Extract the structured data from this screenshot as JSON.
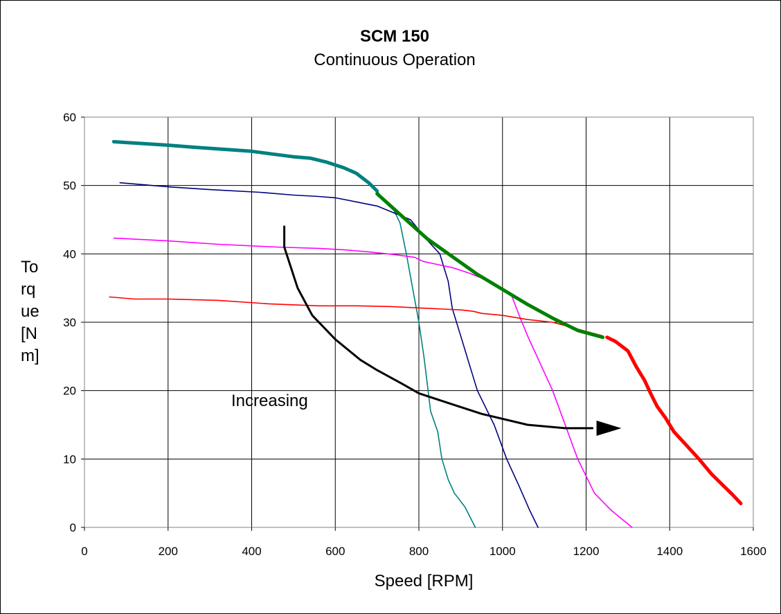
{
  "chart_data": {
    "type": "line",
    "title": "SCM 150",
    "subtitle": "Continuous Operation",
    "xlabel": "Speed [RPM]",
    "ylabel_lines": [
      "To",
      "rq",
      "ue",
      "[N",
      "m]"
    ],
    "xlim": [
      0,
      1600
    ],
    "ylim": [
      0,
      60
    ],
    "xticks": [
      "0",
      "200",
      "400",
      "600",
      "800",
      "1000",
      "1200",
      "1400",
      "1600"
    ],
    "yticks": [
      "0",
      "10",
      "20",
      "30",
      "40",
      "50",
      "60"
    ],
    "grid": true,
    "annotation": "Increasing",
    "series": [
      {
        "color": "#008080",
        "width": 5,
        "points": [
          [
            70,
            56.4
          ],
          [
            200,
            55.9
          ],
          [
            260,
            55.6
          ],
          [
            400,
            55.0
          ],
          [
            450,
            54.6
          ],
          [
            500,
            54.2
          ],
          [
            540,
            54.0
          ],
          [
            580,
            53.4
          ],
          [
            620,
            52.6
          ],
          [
            650,
            51.8
          ],
          [
            680,
            50.4
          ],
          [
            700,
            49.2
          ]
        ]
      },
      {
        "color": "#008080",
        "width": 1.6,
        "points": [
          [
            700,
            49.2
          ],
          [
            720,
            47.5
          ],
          [
            740,
            46.4
          ],
          [
            755,
            44.5
          ],
          [
            770,
            40
          ],
          [
            785,
            35
          ],
          [
            800,
            30
          ],
          [
            812,
            25
          ],
          [
            818,
            22
          ],
          [
            828,
            17
          ],
          [
            845,
            14
          ],
          [
            855,
            10
          ],
          [
            870,
            7
          ],
          [
            885,
            5
          ],
          [
            910,
            3
          ],
          [
            935,
            0
          ]
        ]
      },
      {
        "color": "#00007F",
        "width": 1.6,
        "points": [
          [
            85,
            50.4
          ],
          [
            200,
            49.8
          ],
          [
            300,
            49.4
          ],
          [
            420,
            49.0
          ],
          [
            500,
            48.6
          ],
          [
            560,
            48.4
          ],
          [
            600,
            48.2
          ],
          [
            650,
            47.6
          ],
          [
            700,
            47.0
          ],
          [
            740,
            46.0
          ],
          [
            780,
            45.0
          ],
          [
            800,
            43.5
          ],
          [
            820,
            42.0
          ],
          [
            850,
            40.0
          ],
          [
            870,
            36.0
          ],
          [
            880,
            32.0
          ],
          [
            900,
            28.0
          ],
          [
            920,
            24.0
          ],
          [
            940,
            20.0
          ],
          [
            980,
            15.0
          ],
          [
            1010,
            10.0
          ],
          [
            1040,
            6.0
          ],
          [
            1065,
            2.5
          ],
          [
            1085,
            0
          ]
        ]
      },
      {
        "color": "#FF00FF",
        "width": 1.6,
        "points": [
          [
            70,
            42.3
          ],
          [
            200,
            41.9
          ],
          [
            320,
            41.4
          ],
          [
            460,
            41.0
          ],
          [
            560,
            40.8
          ],
          [
            620,
            40.6
          ],
          [
            680,
            40.3
          ],
          [
            740,
            39.9
          ],
          [
            790,
            39.5
          ],
          [
            810,
            38.9
          ],
          [
            840,
            38.5
          ],
          [
            880,
            38.0
          ],
          [
            920,
            37.2
          ],
          [
            960,
            36.2
          ],
          [
            1000,
            35.0
          ],
          [
            1020,
            34.2
          ],
          [
            1040,
            31.0
          ],
          [
            1060,
            28.0
          ],
          [
            1090,
            24.0
          ],
          [
            1120,
            20.0
          ],
          [
            1150,
            15.0
          ],
          [
            1180,
            10.0
          ],
          [
            1220,
            5.0
          ],
          [
            1260,
            2.5
          ],
          [
            1310,
            0
          ]
        ]
      },
      {
        "color": "#FF0000",
        "width": 1.6,
        "points": [
          [
            60,
            33.7
          ],
          [
            120,
            33.4
          ],
          [
            200,
            33.4
          ],
          [
            320,
            33.2
          ],
          [
            440,
            32.7
          ],
          [
            560,
            32.4
          ],
          [
            650,
            32.4
          ],
          [
            730,
            32.3
          ],
          [
            800,
            32.1
          ],
          [
            900,
            31.8
          ],
          [
            930,
            31.6
          ],
          [
            950,
            31.3
          ],
          [
            1000,
            31.0
          ],
          [
            1060,
            30.4
          ],
          [
            1120,
            30.0
          ],
          [
            1180,
            29.0
          ],
          [
            1240,
            28.0
          ]
        ]
      },
      {
        "color": "#008000",
        "width": 5,
        "points": [
          [
            700,
            48.8
          ],
          [
            760,
            45.5
          ],
          [
            820,
            42.2
          ],
          [
            880,
            39.6
          ],
          [
            940,
            37.0
          ],
          [
            1000,
            34.8
          ],
          [
            1060,
            32.6
          ],
          [
            1120,
            30.6
          ],
          [
            1180,
            28.8
          ],
          [
            1240,
            27.8
          ]
        ]
      },
      {
        "color": "#FF0000",
        "width": 5,
        "points": [
          [
            1250,
            27.8
          ],
          [
            1270,
            27.2
          ],
          [
            1300,
            25.8
          ],
          [
            1320,
            23.5
          ],
          [
            1340,
            21.5
          ],
          [
            1355,
            19.5
          ],
          [
            1370,
            17.7
          ],
          [
            1390,
            16.0
          ],
          [
            1410,
            14.0
          ],
          [
            1440,
            12.0
          ],
          [
            1470,
            10.0
          ],
          [
            1500,
            7.8
          ],
          [
            1530,
            6.0
          ],
          [
            1550,
            4.8
          ],
          [
            1570,
            3.5
          ]
        ]
      },
      {
        "color": "#000000",
        "width": 3,
        "points": [
          [
            478,
            44
          ],
          [
            478,
            41
          ],
          [
            510,
            35
          ],
          [
            545,
            31
          ],
          [
            600,
            27.5
          ],
          [
            660,
            24.5
          ],
          [
            700,
            23
          ],
          [
            760,
            21
          ],
          [
            800,
            19.6
          ],
          [
            880,
            18
          ],
          [
            950,
            16.6
          ],
          [
            1060,
            15.0
          ],
          [
            1150,
            14.5
          ],
          [
            1215,
            14.5
          ]
        ]
      }
    ],
    "arrow": {
      "x": 1215,
      "y": 14.5,
      "color": "#000000"
    }
  }
}
